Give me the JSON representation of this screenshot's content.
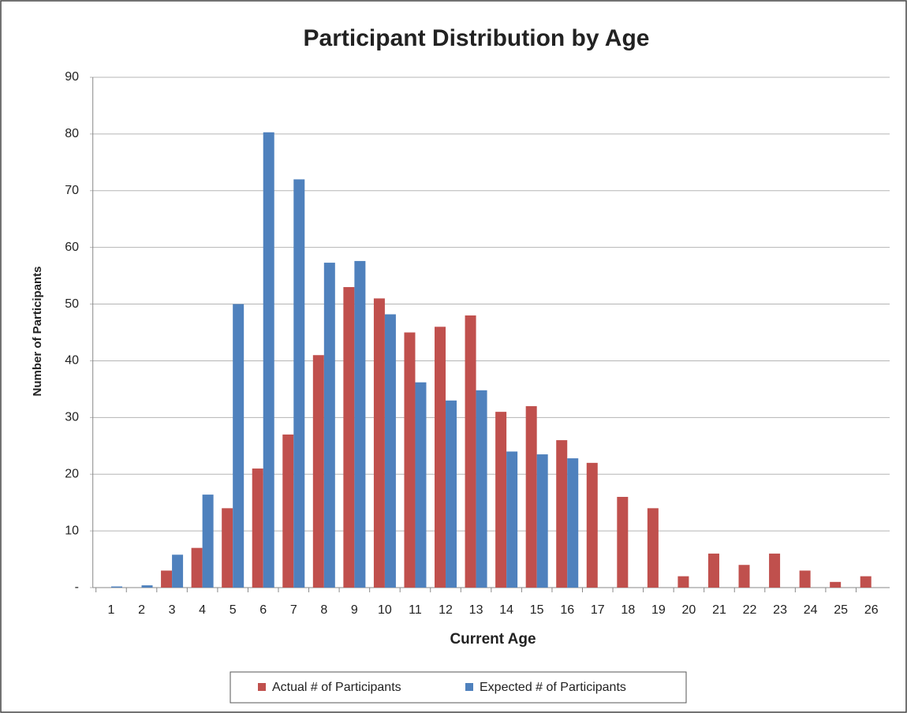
{
  "chart_data": {
    "type": "bar",
    "title": "Participant Distribution by Age",
    "x_label": "Current Age",
    "y_label": "Number of Participants",
    "categories": [
      "1",
      "2",
      "3",
      "4",
      "5",
      "6",
      "7",
      "8",
      "9",
      "10",
      "11",
      "12",
      "13",
      "14",
      "15",
      "16",
      "17",
      "18",
      "19",
      "20",
      "21",
      "22",
      "23",
      "24",
      "25",
      "26"
    ],
    "series": [
      {
        "name": "Actual # of Participants",
        "color": "#c0504d",
        "values": [
          0,
          0,
          3,
          7,
          14,
          21,
          27,
          41,
          53,
          51,
          45,
          46,
          48,
          31,
          32,
          26,
          22,
          16,
          14,
          2,
          6,
          4,
          6,
          3,
          1,
          2
        ]
      },
      {
        "name": "Expected # of Participants",
        "color": "#4f81bd",
        "values": [
          0.2,
          0.4,
          5.8,
          16.4,
          50,
          80.3,
          72,
          57.3,
          57.6,
          48.2,
          36.2,
          33,
          34.8,
          24,
          23.5,
          22.8,
          null,
          null,
          null,
          null,
          null,
          null,
          null,
          null,
          null,
          null
        ]
      }
    ],
    "ylim": [
      0,
      90
    ],
    "yticks": [
      {
        "value": 0,
        "label": "-"
      },
      10,
      20,
      30,
      40,
      50,
      60,
      70,
      80,
      90
    ],
    "grid": true,
    "legend": "bottom"
  }
}
